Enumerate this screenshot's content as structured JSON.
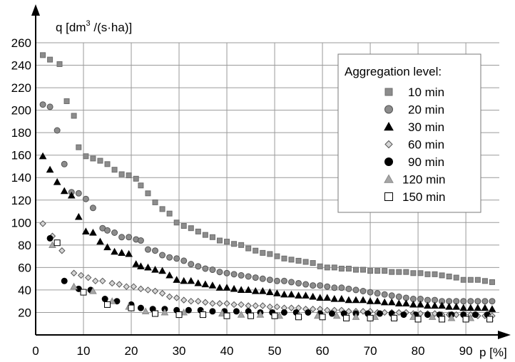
{
  "chart_data": {
    "type": "scatter",
    "ylabel_main": "q [dm",
    "ylabel_sup": "3",
    "ylabel_tail": " /(s·ha)]",
    "xlabel": "p [%]",
    "xlim": [
      0,
      97
    ],
    "ylim": [
      0,
      260
    ],
    "xticks": [
      "0",
      "10",
      "20",
      "30",
      "40",
      "50",
      "60",
      "70",
      "80",
      "90"
    ],
    "yticks": [
      "20",
      "40",
      "60",
      "80",
      "100",
      "120",
      "140",
      "160",
      "180",
      "200",
      "220",
      "240",
      "260"
    ],
    "legend_title": "Aggregation level:",
    "legend_position": "top-right",
    "grid": true,
    "series": [
      {
        "name": "10 min",
        "marker": "square",
        "color": "#8c8c8c",
        "stroke": "#6e6e6e",
        "x": [
          1.5,
          3,
          5,
          6.5,
          8,
          9,
          10.5,
          12,
          13.5,
          15,
          16.5,
          18,
          19.5,
          21,
          22,
          23.5,
          25,
          26.5,
          28,
          29.5,
          31,
          32.5,
          34,
          35.5,
          37,
          38.5,
          40,
          41.5,
          43,
          44.5,
          46,
          47.5,
          49,
          50.5,
          52,
          53.5,
          55,
          56.5,
          58,
          59.5,
          61,
          62.5,
          64,
          65.5,
          67,
          68.5,
          70,
          71.5,
          73,
          74.5,
          76,
          77.5,
          79,
          80.5,
          82,
          83.5,
          85,
          86.5,
          88,
          89.5,
          91,
          92.5,
          94,
          95.5
        ],
        "y": [
          249,
          245,
          241,
          208,
          195,
          167,
          159,
          157,
          155,
          152,
          147,
          143,
          142,
          139,
          133,
          126,
          118,
          112,
          108,
          100,
          97,
          95,
          92,
          89,
          87,
          84,
          83,
          81,
          80,
          77,
          75,
          73,
          72,
          70,
          68,
          67,
          66,
          65,
          64,
          61,
          60,
          60,
          59,
          59,
          58,
          58,
          57,
          57,
          57,
          56,
          56,
          56,
          55,
          55,
          54,
          54,
          53,
          52,
          51,
          49,
          49,
          49,
          48,
          47
        ]
      },
      {
        "name": "20 min",
        "marker": "circle",
        "color": "#8c8c8c",
        "stroke": "#555555",
        "x": [
          1.5,
          3,
          4.5,
          6,
          7.5,
          9,
          10.5,
          12,
          14,
          15,
          16.5,
          18,
          19.5,
          21,
          22,
          23.5,
          25,
          26.5,
          28,
          29.5,
          31,
          32.5,
          34,
          35.5,
          37,
          38.5,
          40,
          41.5,
          43,
          44.5,
          46,
          47.5,
          49,
          50.5,
          52,
          53.5,
          55,
          56.5,
          58,
          59.5,
          61,
          62.5,
          64,
          65.5,
          67,
          68.5,
          70,
          71.5,
          73,
          74.5,
          76,
          77.5,
          79,
          80.5,
          82,
          83.5,
          85,
          86.5,
          88,
          89.5,
          91,
          92.5,
          94,
          95.5
        ],
        "y": [
          205,
          203,
          182,
          152,
          127,
          126,
          121,
          113,
          95,
          93,
          91,
          87,
          87,
          85,
          84,
          76,
          75,
          71,
          69,
          68,
          66,
          63,
          61,
          59,
          58,
          56,
          55,
          54,
          53,
          52,
          51,
          50,
          49,
          48,
          48,
          47,
          46,
          45,
          44,
          44,
          43,
          42,
          42,
          41,
          40,
          39,
          38,
          37,
          36,
          35,
          34,
          33,
          32,
          32,
          31,
          31,
          30,
          30,
          30,
          30,
          30,
          30,
          30,
          30
        ]
      },
      {
        "name": "30 min",
        "marker": "triangle",
        "color": "#000000",
        "stroke": "#000000",
        "x": [
          1.5,
          3,
          4.5,
          6,
          7.5,
          9,
          10.5,
          12,
          13.5,
          15,
          16.5,
          18,
          19.5,
          21,
          22,
          23.5,
          25,
          26.5,
          28,
          29.5,
          31,
          32.5,
          34,
          35.5,
          37,
          38.5,
          40,
          41.5,
          43,
          44.5,
          46,
          47.5,
          49,
          50.5,
          52,
          53.5,
          55,
          56.5,
          58,
          59.5,
          61,
          62.5,
          64,
          65.5,
          67,
          68.5,
          70,
          71.5,
          73,
          74.5,
          76,
          77.5,
          79,
          80.5,
          82,
          83.5,
          85,
          86.5,
          88,
          89.5,
          91,
          92.5,
          94,
          95.5
        ],
        "y": [
          159,
          147,
          136,
          128,
          124,
          105,
          92,
          91,
          83,
          78,
          74,
          73,
          72,
          63,
          61,
          60,
          58,
          57,
          53,
          49,
          48,
          48,
          46,
          45,
          44,
          42,
          42,
          41,
          40,
          40,
          39,
          39,
          38,
          37,
          36,
          36,
          35,
          35,
          34,
          33,
          33,
          32,
          32,
          31,
          31,
          31,
          30,
          30,
          29,
          29,
          28,
          28,
          27,
          27,
          26,
          26,
          26,
          25,
          25,
          24,
          24,
          24,
          24,
          23
        ]
      },
      {
        "name": "60 min",
        "marker": "diamond",
        "color": "#d6d6d6",
        "stroke": "#555555",
        "x": [
          1.5,
          3.5,
          5.5,
          8,
          9.5,
          11,
          12.5,
          14,
          16,
          17.5,
          19,
          20.5,
          22,
          23.5,
          25,
          26.5,
          28,
          29.5,
          31,
          32.5,
          34,
          35.5,
          37,
          38.5,
          40,
          41.5,
          43,
          44.5,
          46,
          47.5,
          49,
          50.5,
          52,
          53.5,
          55,
          56.5,
          58,
          59.5,
          61,
          62.5,
          64,
          65.5,
          67,
          68.5,
          70,
          71.5,
          73,
          74.5,
          76,
          77.5,
          79,
          80.5,
          82,
          83.5,
          85,
          86.5,
          88,
          89.5,
          91,
          92.5,
          94,
          95.5
        ],
        "y": [
          99,
          88,
          75,
          55,
          53,
          51,
          48,
          48,
          46,
          45,
          43,
          43,
          41,
          40,
          39,
          37,
          34,
          33,
          31,
          30,
          30,
          29,
          28,
          28,
          28,
          27,
          27,
          26,
          26,
          26,
          25,
          25,
          24,
          24,
          24,
          23,
          23,
          23,
          22,
          22,
          22,
          21,
          21,
          21,
          21,
          20,
          20,
          20,
          20,
          20,
          19,
          19,
          19,
          19,
          18,
          18,
          18,
          18,
          18,
          17,
          17,
          17
        ]
      },
      {
        "name": "90 min",
        "marker": "circle",
        "color": "#000000",
        "stroke": "#000000",
        "x": [
          3,
          6,
          9,
          11.5,
          14.5,
          17,
          20,
          22,
          24.5,
          27,
          29.5,
          32,
          34.5,
          37,
          39.5,
          42,
          44.5,
          47,
          49.5,
          52,
          54.5,
          57,
          59.5,
          62,
          64.5,
          67,
          69.5,
          72,
          74.5,
          77,
          79.5,
          82,
          84.5,
          87,
          89.5,
          92,
          94.5
        ],
        "y": [
          86,
          48,
          41,
          40,
          32,
          30,
          27,
          24,
          23,
          23,
          22,
          22,
          22,
          21,
          21,
          21,
          21,
          20,
          20,
          20,
          20,
          20,
          19,
          19,
          19,
          19,
          19,
          19,
          19,
          18,
          18,
          18,
          18,
          18,
          18,
          18,
          18
        ]
      },
      {
        "name": "120 min",
        "marker": "triangle",
        "color": "#a6a6a6",
        "stroke": "#8a8a8a",
        "x": [
          3.5,
          8,
          12,
          16,
          19.5,
          23,
          27,
          31,
          35,
          39,
          43,
          47,
          51,
          55,
          59,
          63,
          67,
          71,
          75,
          79,
          83,
          87,
          91,
          95
        ],
        "y": [
          80,
          43,
          39,
          30,
          25,
          21,
          20,
          20,
          19,
          19,
          18,
          18,
          17,
          17,
          17,
          17,
          16,
          16,
          16,
          16,
          16,
          15,
          15,
          15
        ]
      },
      {
        "name": "150 min",
        "marker": "square-open",
        "color": "#ffffff",
        "stroke": "#000000",
        "x": [
          4.5,
          10,
          15,
          20,
          25,
          30,
          35,
          40,
          45,
          50,
          55,
          60,
          65,
          70,
          75,
          80,
          85,
          90,
          95
        ],
        "y": [
          82,
          38,
          27,
          24,
          19,
          18,
          18,
          17,
          17,
          17,
          16,
          16,
          15,
          15,
          15,
          14,
          14,
          14,
          14
        ]
      }
    ]
  }
}
